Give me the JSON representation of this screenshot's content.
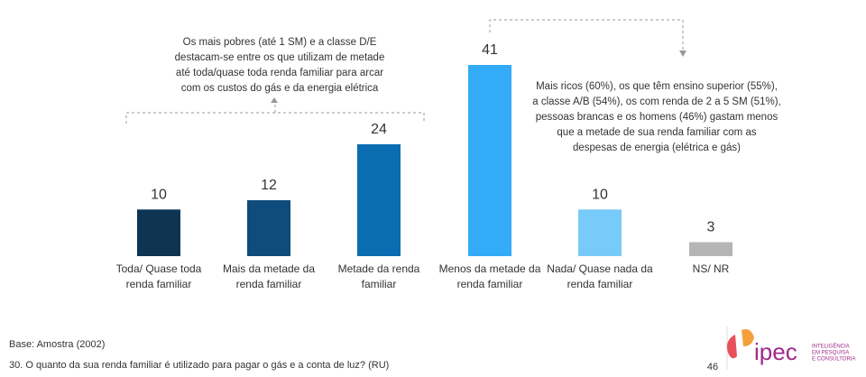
{
  "chart_data": {
    "type": "bar",
    "categories": [
      "Toda/ Quase toda renda familiar",
      "Mais da metade da renda familiar",
      "Metade da renda familiar",
      "Menos da metade da renda familiar",
      "Nada/ Quase nada da renda familiar",
      "NS/ NR"
    ],
    "values": [
      10,
      12,
      24,
      41,
      10,
      3
    ],
    "colors": [
      "#0e3452",
      "#0f4c7c",
      "#0b6db1",
      "#33abf6",
      "#78caf8",
      "#b5b5b5"
    ],
    "annotations": [
      [
        "Os mais pobres (até 1 SM) e a classe D/E",
        "destacam-se entre os que utilizam de metade",
        "até toda/quase toda renda familiar para arcar",
        "com os custos do gás e da energia elétrica"
      ],
      [
        "Mais ricos (60%), os que têm ensino superior (55%),",
        "a classe A/B (54%), os com renda de 2 a 5 SM (51%),",
        "pessoas brancas e os homens (46%) gastam menos",
        "que a metade de sua renda familiar com as",
        "despesas de energia (elétrica e gás)"
      ]
    ]
  },
  "footer": {
    "base": "Base: Amostra (2002)",
    "question": "30.  O quanto da sua renda familiar é utilizado para pagar o gás e a conta de luz? (RU)",
    "page": "46"
  },
  "logo": {
    "name": "ipec",
    "tagline": [
      "INTELIGÊNCIA",
      "EM PESQUISA",
      "E CONSULTORIA"
    ]
  }
}
